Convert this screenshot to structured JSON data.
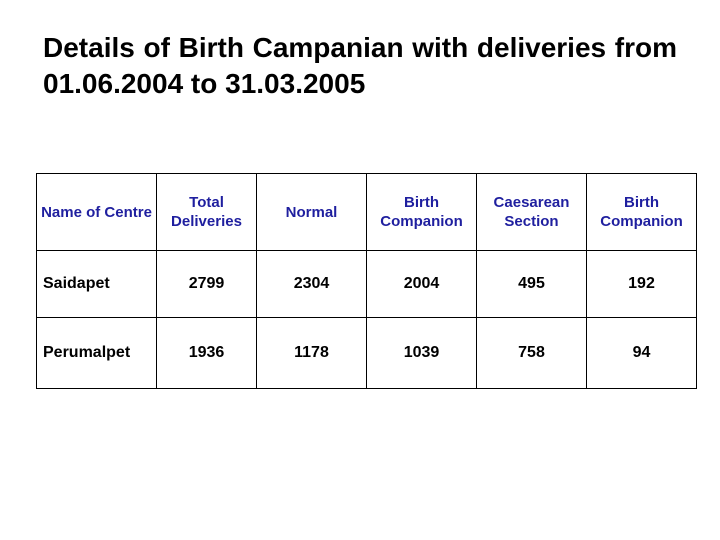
{
  "title": "Details of Birth Campanian with deliveries from 01.06.2004 to 31.03.2005",
  "header_color": "#1f1f9f",
  "table": {
    "headers": [
      "Name of Centre",
      "Total Deliveries",
      "Normal",
      "Birth Companion",
      "Caesarean Section",
      "Birth Companion"
    ],
    "rows": [
      [
        "Saidapet",
        "2799",
        "2304",
        "2004",
        "495",
        "192"
      ],
      [
        "Perumalpet",
        "1936",
        "1178",
        "1039",
        "758",
        "94"
      ]
    ]
  }
}
